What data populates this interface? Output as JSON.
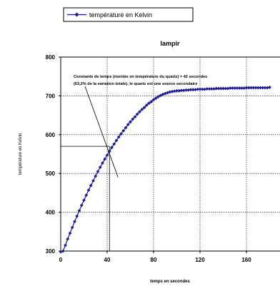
{
  "chart_data": {
    "type": "line",
    "title": "lampir",
    "xlabel": "temps en secondes",
    "ylabel": "température en Kelvin",
    "xlim": [
      0,
      180
    ],
    "ylim": [
      300,
      800
    ],
    "xticks": [
      "0",
      "40",
      "80",
      "120",
      "160"
    ],
    "yticks": [
      "300",
      "400",
      "500",
      "600",
      "700",
      "800"
    ],
    "grid": true,
    "legend_position": "top-left",
    "series": [
      {
        "name": "température en Kelvin",
        "color": "#1a1aa6",
        "marker": "diamond",
        "x": [
          0,
          2,
          4,
          6,
          8,
          10,
          12,
          14,
          16,
          18,
          20,
          22,
          24,
          26,
          28,
          30,
          32,
          34,
          36,
          38,
          40,
          42,
          44,
          46,
          48,
          50,
          52,
          54,
          56,
          58,
          60,
          62,
          64,
          66,
          68,
          70,
          72,
          74,
          76,
          78,
          80,
          82,
          84,
          86,
          88,
          90,
          92,
          94,
          96,
          98,
          100,
          102,
          104,
          106,
          108,
          110,
          112,
          114,
          116,
          118,
          120,
          122,
          124,
          126,
          128,
          130,
          132,
          134,
          136,
          138,
          140,
          142,
          144,
          146,
          148,
          150,
          152,
          154,
          156,
          158,
          160,
          162,
          164,
          166,
          168,
          170,
          172,
          174,
          176,
          178,
          180
        ],
        "values": [
          298,
          300,
          315,
          331,
          346,
          361,
          376,
          390,
          404,
          418,
          431,
          444,
          457,
          469,
          481,
          493,
          505,
          516,
          527,
          537,
          547,
          557,
          567,
          576,
          585,
          594,
          602,
          610,
          618,
          626,
          633,
          640,
          646,
          653,
          659,
          665,
          670,
          676,
          681,
          685,
          690,
          694,
          698,
          701,
          704,
          706,
          708,
          710,
          711,
          712,
          713,
          713,
          714,
          714,
          715,
          715,
          716,
          716,
          716,
          717,
          717,
          717,
          717,
          718,
          718,
          718,
          718,
          719,
          719,
          719,
          719,
          719,
          719,
          720,
          720,
          720,
          720,
          720,
          720,
          720,
          721,
          721,
          721,
          721,
          721,
          721,
          721,
          721,
          721,
          721,
          722
        ]
      }
    ],
    "annotation": {
      "lines": [
        "Constante de temps  (montée en température du quartz) = 42 secondes",
        "(63,2% de la variation totale), le quartz est une source secondaire"
      ],
      "point_x": 42,
      "point_y": 570,
      "pointer_to_x": 50,
      "pointer_to_y": 490
    }
  }
}
